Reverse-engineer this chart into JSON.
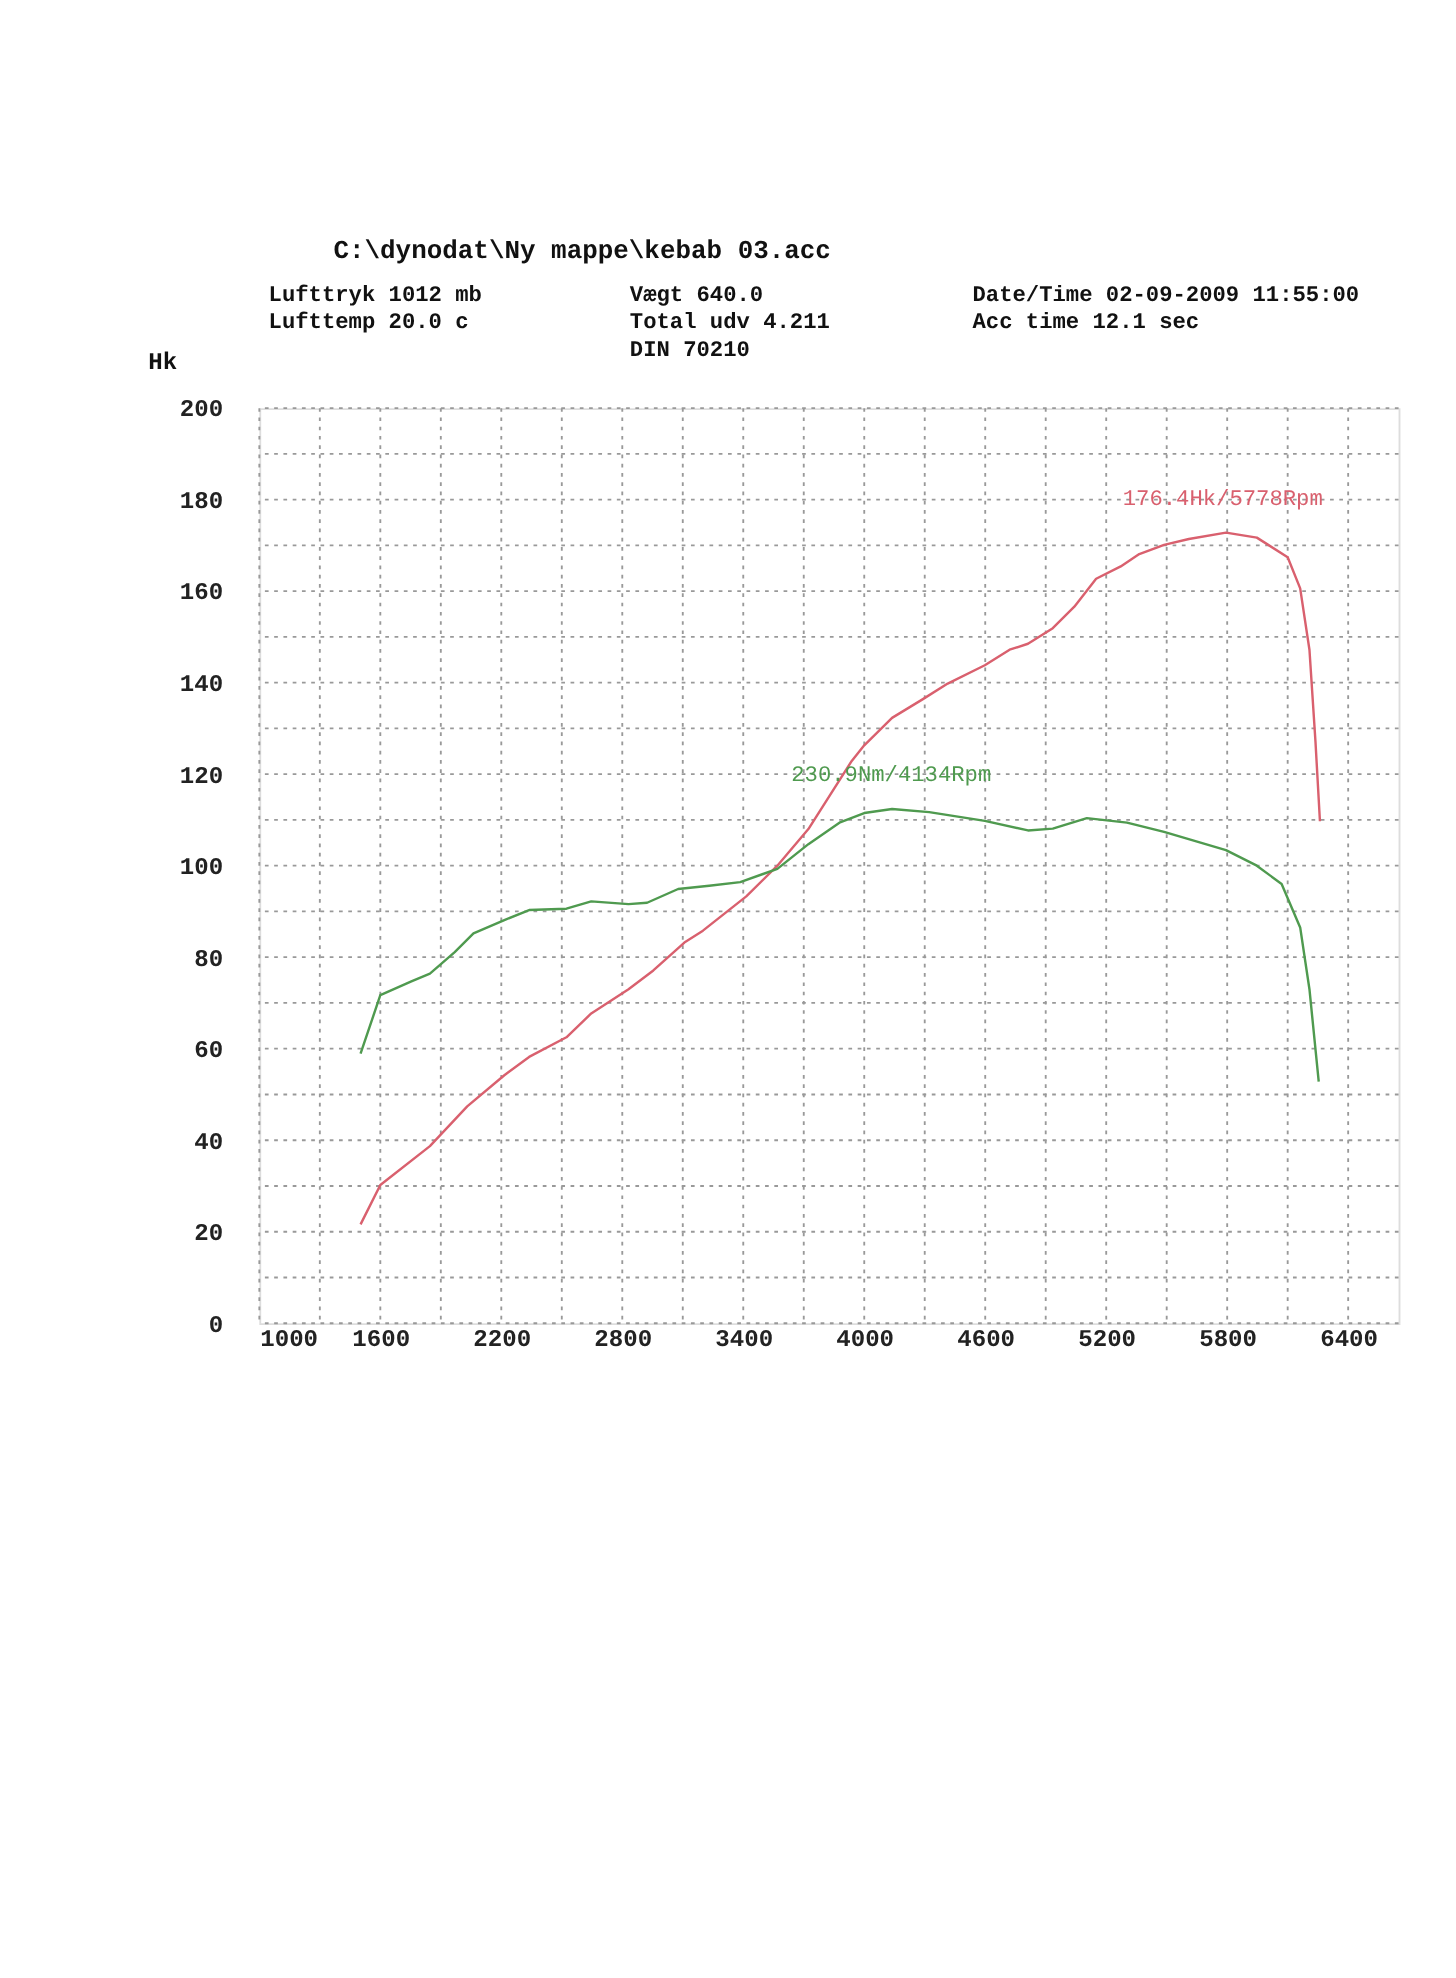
{
  "chart_data": {
    "type": "line",
    "title": "C:\\dynodat\\Ny mappe\\kebab 03.acc",
    "ylabel": "Hk",
    "xlim": [
      1000,
      6650
    ],
    "xticks": [
      1000,
      {
        "value": 1300,
        "label": null
      },
      1600,
      {
        "value": 1900,
        "label": null
      },
      2200,
      {
        "value": 2500,
        "label": null
      },
      2800,
      {
        "value": 3100,
        "label": null
      },
      3400,
      {
        "value": 3700,
        "label": null
      },
      4000,
      {
        "value": 4300,
        "label": null
      },
      4600,
      {
        "value": 4900,
        "label": null
      },
      5200,
      {
        "value": 5500,
        "label": null
      },
      5800,
      {
        "value": 6100,
        "label": null
      },
      6400
    ],
    "ylim": [
      0,
      200
    ],
    "yticks": [
      0,
      {
        "value": 10,
        "label": null
      },
      20,
      {
        "value": 30,
        "label": null
      },
      40,
      {
        "value": 50,
        "label": null
      },
      60,
      {
        "value": 70,
        "label": null
      },
      80,
      {
        "value": 90,
        "label": null
      },
      100,
      {
        "value": 110,
        "label": null
      },
      120,
      {
        "value": 130,
        "label": null
      },
      140,
      {
        "value": 150,
        "label": null
      },
      160,
      {
        "value": 170,
        "label": null
      },
      180,
      {
        "value": 190,
        "label": null
      },
      200
    ],
    "grid": true,
    "line_style": "solid",
    "series": [
      {
        "color": "#d9606e",
        "x": [
          1502,
          1600,
          1846,
          2031,
          2215,
          2338,
          2523,
          2646,
          2831,
          2954,
          3108,
          3200,
          3415,
          3569,
          3723,
          3938,
          4000,
          4138,
          4291,
          4414,
          4598,
          4721,
          4812,
          4935,
          5042,
          5150,
          5272,
          5364,
          5487,
          5610,
          5794,
          5947,
          6100,
          6162,
          6208,
          6238,
          6260
        ],
        "values": [
          21.6,
          30.2,
          38.7,
          47.4,
          54.2,
          58.2,
          62.5,
          67.7,
          73.0,
          77.1,
          83.2,
          85.8,
          93.3,
          100.0,
          108.0,
          122.9,
          126.3,
          132.3,
          136.4,
          139.8,
          143.8,
          147.2,
          148.5,
          151.9,
          156.6,
          162.7,
          165.4,
          168.1,
          170.1,
          171.4,
          172.8,
          171.7,
          167.4,
          160.6,
          147.2,
          127.0,
          109.7
        ]
      },
      {
        "color": "#4f9a4f",
        "x": [
          1502,
          1600,
          1754,
          1846,
          1969,
          2062,
          2215,
          2338,
          2523,
          2646,
          2831,
          2923,
          3077,
          3231,
          3385,
          3569,
          3723,
          3877,
          4000,
          4138,
          4322,
          4598,
          4812,
          4935,
          5104,
          5303,
          5487,
          5794,
          5947,
          6070,
          6162,
          6208,
          6254
        ],
        "values": [
          58.9,
          71.7,
          74.7,
          76.4,
          81.1,
          85.2,
          88.1,
          90.3,
          90.6,
          92.2,
          91.6,
          91.9,
          94.9,
          95.6,
          96.4,
          99.3,
          104.7,
          109.4,
          111.5,
          112.4,
          111.7,
          109.8,
          107.7,
          108.1,
          110.4,
          109.4,
          107.4,
          103.4,
          100.0,
          96.0,
          86.5,
          73.0,
          52.8
        ]
      }
    ],
    "annotations": [
      "Lufttryk 1012 mb",
      "Lufttemp 20.0 c",
      "Vægt 640.0",
      "Total udv 4.211",
      "DIN 70210",
      "Date/Time 02-09-2009 11:55:00",
      "Acc time 12.1 sec",
      {
        "text": "176.4Hk/5778Rpm",
        "x": 5778,
        "y": 172.7
      },
      {
        "text": "230.9Nm/4134Rpm",
        "x": 4134,
        "y": 112.4
      }
    ]
  }
}
